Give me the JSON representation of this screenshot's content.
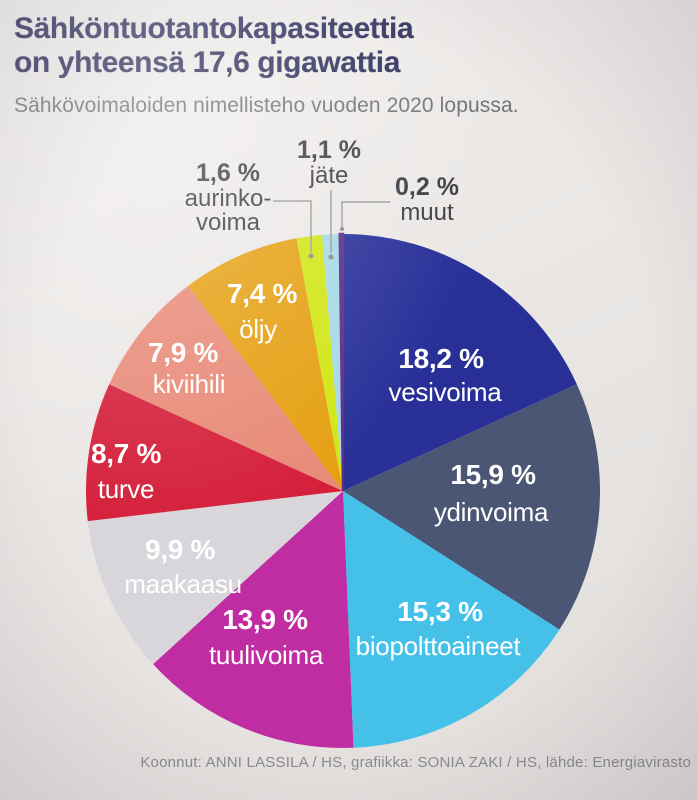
{
  "page": {
    "title_line1": "Sähköntuotantokapasiteettia",
    "title_line2": "on yhteensä 17,6 gigawattia",
    "subtitle": "Sähkövoimaloiden nimellisteho vuoden 2020 lopussa.",
    "footer": "Koonnut: ANNI LASSILA / HS, grafiikka: SONIA ZAKI / HS, lähde: Energiavirasto"
  },
  "chart_data": {
    "type": "pie",
    "title": "Sähköntuotantokapasiteettia on yhteensä 17,6 gigawattia",
    "subtitle": "Sähkövoimaloiden nimellisteho vuoden 2020 lopussa.",
    "unit": "%",
    "total_label": "17,6 gigawattia",
    "start_angle_deg": 0,
    "direction": "clockwise",
    "legend": "none",
    "inside_label_color": "#ffffff",
    "slices": [
      {
        "name": "vesivoima",
        "value": 18.2,
        "pct_label": "18,2 %",
        "color": "#283098",
        "label_placement": "inside"
      },
      {
        "name": "ydinvoima",
        "value": 15.9,
        "pct_label": "15,9 %",
        "color": "#4a5673",
        "label_placement": "inside"
      },
      {
        "name": "biopolttoaineet",
        "value": 15.3,
        "pct_label": "15,3 %",
        "color": "#45c0e8",
        "label_placement": "inside"
      },
      {
        "name": "tuulivoima",
        "value": 13.9,
        "pct_label": "13,9 %",
        "color": "#c02da2",
        "label_placement": "inside"
      },
      {
        "name": "maakaasu",
        "value": 9.9,
        "pct_label": "9,9 %",
        "color": "#d9d6db",
        "label_placement": "inside"
      },
      {
        "name": "turve",
        "value": 8.7,
        "pct_label": "8,7 %",
        "color": "#d51f3a",
        "label_placement": "inside"
      },
      {
        "name": "kiviihili",
        "value": 7.9,
        "pct_label": "7,9 %",
        "color": "#e88a78",
        "label_placement": "inside"
      },
      {
        "name": "öljy",
        "value": 7.4,
        "pct_label": "7,4 %",
        "color": "#e5a012",
        "label_placement": "inside"
      },
      {
        "name": "aurinkovoima",
        "value": 1.6,
        "pct_label": "1,6 %",
        "color": "#d2e615",
        "label_placement": "outside",
        "display_lines": [
          "aurinko-",
          "voima"
        ]
      },
      {
        "name": "jäte",
        "value": 1.1,
        "pct_label": "1,1 %",
        "color": "#a6d9e6",
        "label_placement": "outside",
        "display_lines": [
          "jäte"
        ]
      },
      {
        "name": "muut",
        "value": 0.2,
        "pct_label": "0,2 %",
        "color": "#5a2d87",
        "label_placement": "outside",
        "display_lines": [
          "muut"
        ]
      }
    ]
  },
  "colors": {
    "background": "#ebe8e6",
    "title": "#2e2f5c",
    "subtitle": "#72727a",
    "callout_text": "#3d3d44",
    "leader_line": "#9b9b9b",
    "footer": "#8a8a90"
  }
}
